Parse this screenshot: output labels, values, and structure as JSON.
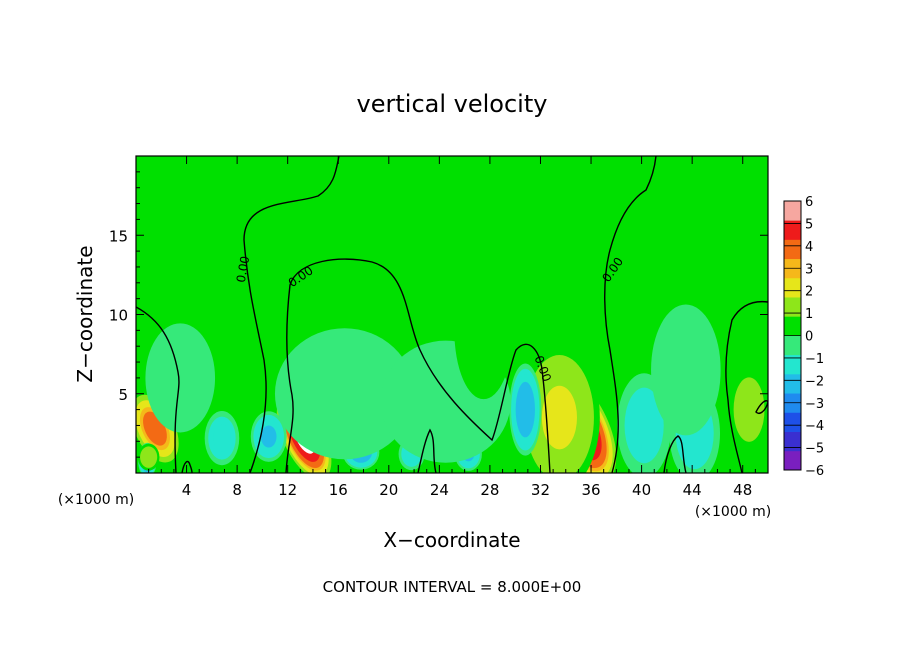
{
  "chart_data": {
    "type": "heatmap",
    "title": "vertical velocity",
    "xlabel": "X−coordinate",
    "ylabel": "Z−coordinate",
    "x_unit": "(×1000 m)",
    "y_unit": "(×1000 m)",
    "xlim": [
      0,
      50
    ],
    "ylim": [
      0,
      20
    ],
    "x_ticks": [
      4,
      8,
      12,
      16,
      20,
      24,
      28,
      32,
      36,
      40,
      44,
      48
    ],
    "y_ticks": [
      5,
      10,
      15
    ],
    "footer": "CONTOUR INTERVAL =  8.000E+00",
    "colorbar": {
      "range": [
        -6,
        6
      ],
      "ticks": [
        "6",
        "5",
        "4",
        "3",
        "2",
        "1",
        "0",
        "−1",
        "−2",
        "−3",
        "−4",
        "−5",
        "−6"
      ],
      "colors": [
        "#7a1fbf",
        "#3a2fd0",
        "#1e50e8",
        "#1f8bef",
        "#22bde8",
        "#23e6cf",
        "#36e97a",
        "#00e000",
        "#8ee61a",
        "#e6e61a",
        "#f5b81a",
        "#f36a14",
        "#ee1b1b",
        "#f6a7a0"
      ]
    },
    "contour_labels": [
      "0.00",
      "0.00",
      "0.00",
      "0.00"
    ],
    "features": [
      {
        "x": 1.5,
        "z": 2.8,
        "value": 4,
        "sx": 0.9,
        "sz": 1.3
      },
      {
        "x": 13.3,
        "z": 2.3,
        "value": 6,
        "sx": 0.9,
        "sz": 1.6
      },
      {
        "x": 35.2,
        "z": 2.8,
        "value": 6,
        "sx": 1.2,
        "sz": 2.0
      },
      {
        "x": 33.5,
        "z": 3.5,
        "value": 2,
        "sx": 1.8,
        "sz": 2.6
      },
      {
        "x": 48.5,
        "z": 4.0,
        "value": 1,
        "sx": 1.2,
        "sz": 2.0
      },
      {
        "x": 0.9,
        "z": 0.8,
        "value": -3,
        "sx": 0.4,
        "sz": 0.6
      },
      {
        "x": 30.8,
        "z": 4.0,
        "value": -2.5,
        "sx": 0.7,
        "sz": 1.6
      },
      {
        "x": 17.8,
        "z": 1.3,
        "value": -2.5,
        "sx": 0.8,
        "sz": 0.6
      },
      {
        "x": 10.5,
        "z": 2.3,
        "value": -2,
        "sx": 0.8,
        "sz": 0.9
      },
      {
        "x": 26.3,
        "z": 1.2,
        "value": -2,
        "sx": 0.6,
        "sz": 0.6
      },
      {
        "x": 21.8,
        "z": 1.2,
        "value": -1.5,
        "sx": 0.6,
        "sz": 0.6
      },
      {
        "x": 6.8,
        "z": 2.2,
        "value": -1.5,
        "sx": 0.8,
        "sz": 1.0
      },
      {
        "x": 40.2,
        "z": 3.0,
        "value": -1.2,
        "sx": 1.3,
        "sz": 2.0
      },
      {
        "x": 44.2,
        "z": 2.5,
        "value": -1.3,
        "sx": 1.2,
        "sz": 1.8
      },
      {
        "x": 16.5,
        "z": 5.0,
        "value": -0.6,
        "sx": 4.0,
        "sz": 3.0
      },
      {
        "x": 24.5,
        "z": 4.5,
        "value": -0.5,
        "sx": 4.0,
        "sz": 3.0
      },
      {
        "x": 3.5,
        "z": 6.0,
        "value": -0.6,
        "sx": 2.0,
        "sz": 2.5
      },
      {
        "x": 8.5,
        "z": 7.0,
        "value": -0.4,
        "sx": 2.0,
        "sz": 2.5
      },
      {
        "x": 43.5,
        "z": 6.5,
        "value": -0.6,
        "sx": 2.0,
        "sz": 3.0
      },
      {
        "x": 27.5,
        "z": 9.0,
        "value": 0.7,
        "sx": 1.6,
        "sz": 3.0
      },
      {
        "x": 1.0,
        "z": 1.0,
        "value": 1.5,
        "sx": 0.5,
        "sz": 0.5
      }
    ]
  }
}
